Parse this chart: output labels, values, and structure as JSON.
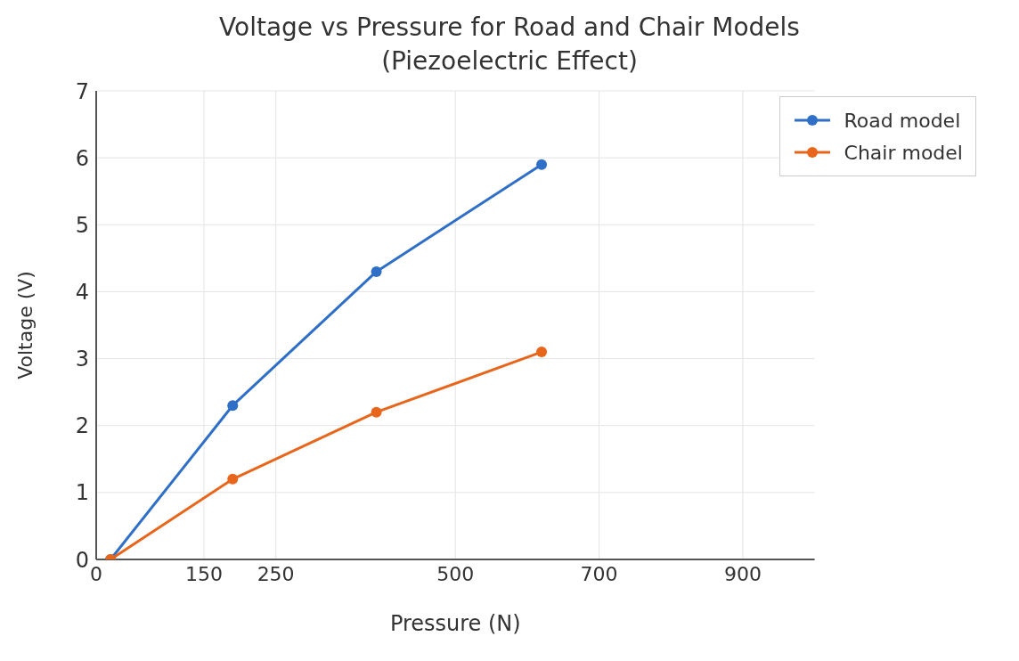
{
  "chart_data": {
    "type": "line",
    "title": "Voltage vs Pressure for Road and Chair Models\n(Piezoelectric Effect)",
    "xlabel": "Pressure (N)",
    "ylabel": "Voltage (V)",
    "x": [
      20,
      190,
      390,
      620
    ],
    "series": [
      {
        "name": "Road model",
        "color": "#2f6fc8",
        "values": [
          0,
          2.3,
          4.3,
          5.9
        ]
      },
      {
        "name": "Chair model",
        "color": "#e8661c",
        "values": [
          0,
          1.2,
          2.2,
          3.1
        ]
      }
    ],
    "xlim": [
      0,
      1000
    ],
    "xticks": [
      0,
      150,
      250,
      500,
      700,
      900
    ],
    "ylim": [
      0,
      7
    ],
    "yticks": [
      0,
      1,
      2,
      3,
      4,
      5,
      6,
      7
    ],
    "grid": true,
    "legend": "top right",
    "marker": "circle",
    "line_style": "solid"
  }
}
